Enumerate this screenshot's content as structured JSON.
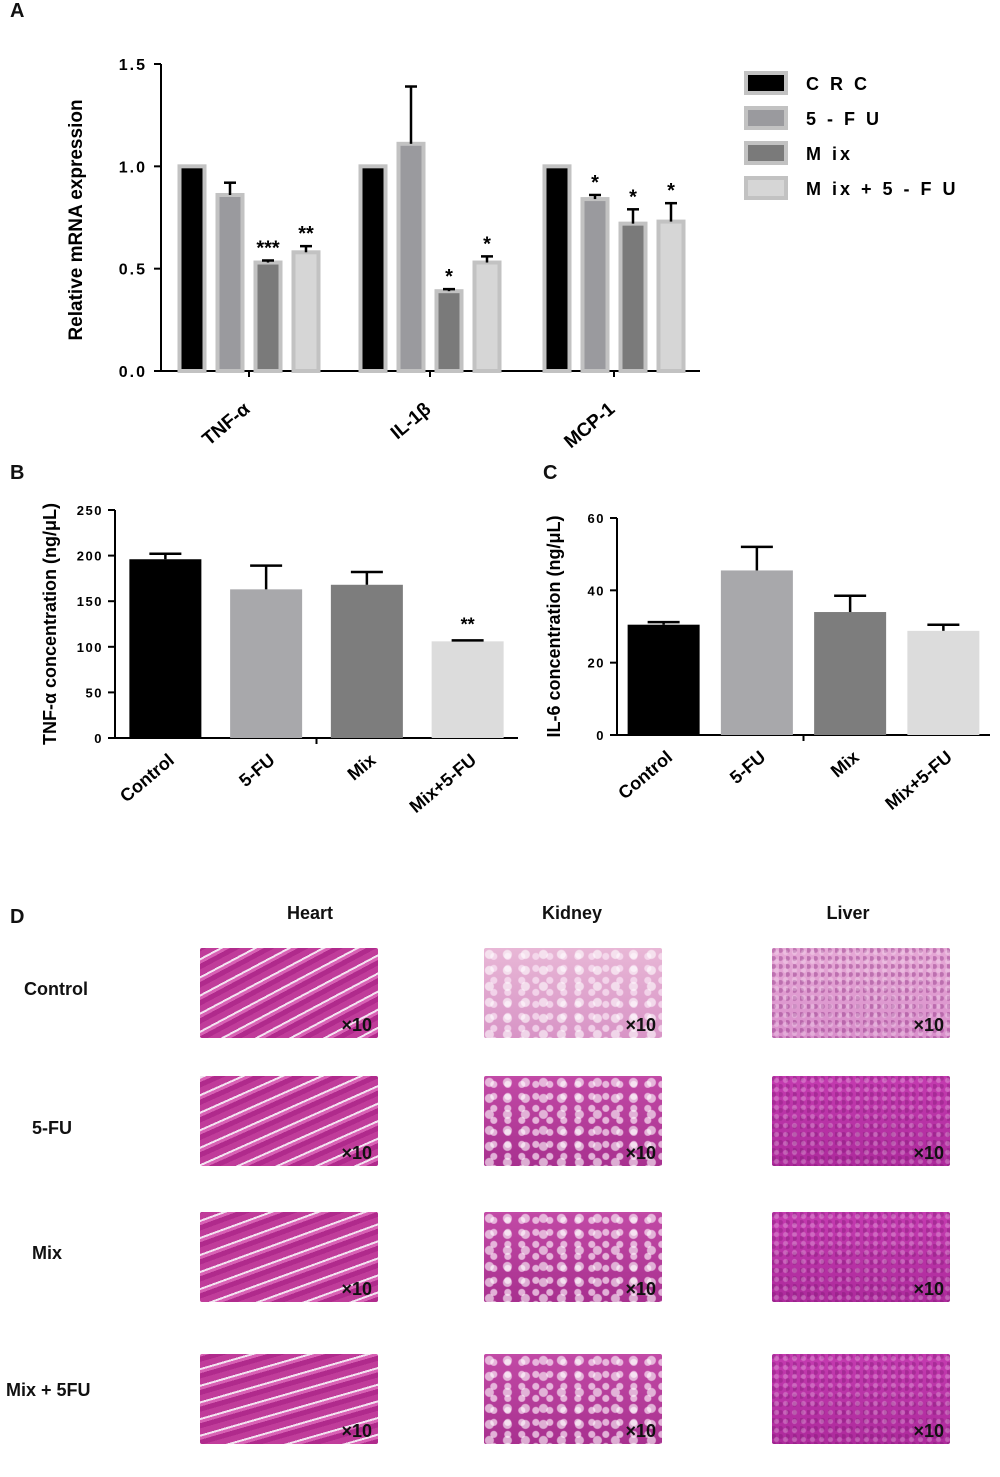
{
  "panels": {
    "A": "A",
    "B": "B",
    "C": "C",
    "D": "D"
  },
  "chart_data": [
    {
      "id": "A",
      "type": "bar",
      "ylabel": "Relative mRNA expression",
      "ylim": [
        0,
        1.5
      ],
      "yticks": [
        "0.0",
        "0.5",
        "1.0",
        "1.5"
      ],
      "categories": [
        "TNF-α",
        "IL-1β",
        "MCP-1"
      ],
      "legend": "right",
      "series": [
        {
          "name": "C R C",
          "color": "#000000",
          "values": [
            1.0,
            1.0,
            1.0
          ],
          "errors": [
            0,
            0,
            0
          ],
          "sig": [
            "",
            "",
            ""
          ]
        },
        {
          "name": "5 - F U",
          "color": "#9a9a9e",
          "values": [
            0.86,
            1.11,
            0.84
          ],
          "errors": [
            0.06,
            0.28,
            0.02
          ],
          "sig": [
            "",
            "",
            "*"
          ]
        },
        {
          "name": "M ix",
          "color": "#7a7a7a",
          "values": [
            0.53,
            0.39,
            0.72
          ],
          "errors": [
            0.01,
            0.01,
            0.07
          ],
          "sig": [
            "***",
            "*",
            "*"
          ]
        },
        {
          "name": "M ix + 5 - F U",
          "color": "#d6d6d6",
          "values": [
            0.58,
            0.53,
            0.73
          ],
          "errors": [
            0.03,
            0.03,
            0.09
          ],
          "sig": [
            "**",
            "*",
            "*"
          ]
        }
      ]
    },
    {
      "id": "B",
      "type": "bar",
      "ylabel": "TNF-α concentration (ng/μL)",
      "ylim": [
        0,
        250
      ],
      "yticks": [
        "0",
        "50",
        "100",
        "150",
        "200",
        "250"
      ],
      "categories": [
        "Control",
        "5-FU",
        "Mix",
        "Mix+5-FU"
      ],
      "colors": [
        "#000000",
        "#a8a8ab",
        "#7d7d7d",
        "#dcdcdc"
      ],
      "values": [
        196,
        163,
        168,
        106
      ],
      "errors": [
        6,
        26,
        14,
        1
      ],
      "sig": [
        "",
        "",
        "",
        "**"
      ]
    },
    {
      "id": "C",
      "type": "bar",
      "ylabel": "IL-6 concentration (ng/μL)",
      "ylim": [
        0,
        60
      ],
      "yticks": [
        "0",
        "20",
        "40",
        "60"
      ],
      "categories": [
        "Control",
        "5-FU",
        "Mix",
        "Mix+5-FU"
      ],
      "colors": [
        "#000000",
        "#a8a8ab",
        "#7d7d7d",
        "#dcdcdc"
      ],
      "values": [
        30.5,
        45.5,
        34,
        28.8
      ],
      "errors": [
        0.7,
        6.5,
        4.5,
        1.7
      ],
      "sig": [
        "",
        "",
        "",
        ""
      ]
    }
  ],
  "histology": {
    "columns": [
      "Heart",
      "Kidney",
      "Liver"
    ],
    "rows": [
      "Control",
      "5-FU",
      "Mix",
      "Mix + 5FU"
    ],
    "magnification": "×10"
  }
}
